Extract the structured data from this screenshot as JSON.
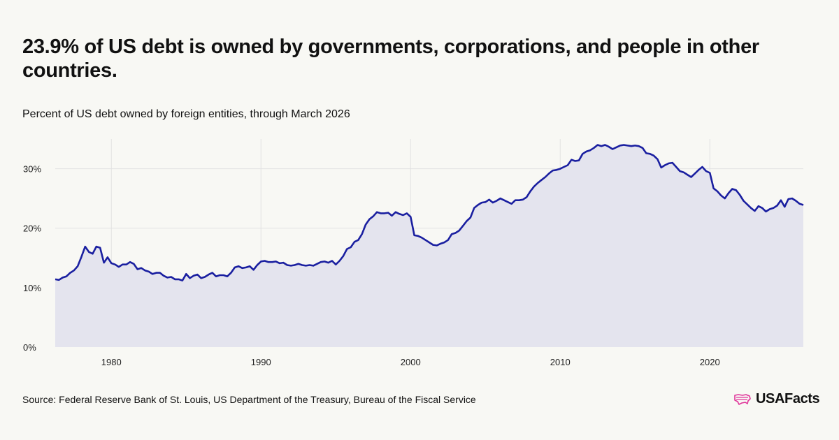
{
  "header": {
    "title": "23.9% of US debt is owned by governments, corporations, and people in other countries.",
    "subtitle": "Percent of US debt owned by foreign entities, through March 2026"
  },
  "footer": {
    "source": "Source: Federal Reserve Bank of St. Louis, US Department of the Treasury, Bureau of the Fiscal Service",
    "logo_text": "USAFacts",
    "logo_icon": "us-map-icon"
  },
  "colors": {
    "line": "#1a1fa0",
    "area": "#e4e4ee",
    "grid": "#e2e2e2",
    "logo": "#e0359a"
  },
  "chart_data": {
    "type": "area",
    "title": "23.9% of US debt is owned by governments, corporations, and people in other countries.",
    "subtitle": "Percent of US debt owned by foreign entities, through March 2026",
    "xlim": [
      1976.25,
      2026.25
    ],
    "ylim": [
      0,
      35
    ],
    "x_ticks": [
      1980,
      1990,
      2000,
      2010,
      2020
    ],
    "y_ticks": [
      0,
      10,
      20,
      30
    ],
    "y_tick_format": "percent",
    "grid": true,
    "series": [
      {
        "x": [
          1976.25,
          1976.5,
          1976.75,
          1977,
          1977.25,
          1977.5,
          1977.75,
          1978,
          1978.25,
          1978.5,
          1978.75,
          1979,
          1979.25,
          1979.5,
          1979.75,
          1980,
          1980.25,
          1980.5,
          1980.75,
          1981,
          1981.25,
          1981.5,
          1981.75,
          1982,
          1982.25,
          1982.5,
          1982.75,
          1983,
          1983.25,
          1983.5,
          1983.75,
          1984,
          1984.25,
          1984.5,
          1984.75,
          1985,
          1985.25,
          1985.5,
          1985.75,
          1986,
          1986.25,
          1986.5,
          1986.75,
          1987,
          1987.25,
          1987.5,
          1987.75,
          1988,
          1988.25,
          1988.5,
          1988.75,
          1989,
          1989.25,
          1989.5,
          1989.75,
          1990,
          1990.25,
          1990.5,
          1990.75,
          1991,
          1991.25,
          1991.5,
          1991.75,
          1992,
          1992.25,
          1992.5,
          1992.75,
          1993,
          1993.25,
          1993.5,
          1993.75,
          1994,
          1994.25,
          1994.5,
          1994.75,
          1995,
          1995.25,
          1995.5,
          1995.75,
          1996,
          1996.25,
          1996.5,
          1996.75,
          1997,
          1997.25,
          1997.5,
          1997.75,
          1998,
          1998.25,
          1998.5,
          1998.75,
          1999,
          1999.25,
          1999.5,
          1999.75,
          2000,
          2000.25,
          2000.5,
          2000.75,
          2001,
          2001.25,
          2001.5,
          2001.75,
          2002,
          2002.25,
          2002.5,
          2002.75,
          2003,
          2003.25,
          2003.5,
          2003.75,
          2004,
          2004.25,
          2004.5,
          2004.75,
          2005,
          2005.25,
          2005.5,
          2005.75,
          2006,
          2006.25,
          2006.5,
          2006.75,
          2007,
          2007.25,
          2007.5,
          2007.75,
          2008,
          2008.25,
          2008.5,
          2008.75,
          2009,
          2009.25,
          2009.5,
          2009.75,
          2010,
          2010.25,
          2010.5,
          2010.75,
          2011,
          2011.25,
          2011.5,
          2011.75,
          2012,
          2012.25,
          2012.5,
          2012.75,
          2013,
          2013.25,
          2013.5,
          2013.75,
          2014,
          2014.25,
          2014.5,
          2014.75,
          2015,
          2015.25,
          2015.5,
          2015.75,
          2016,
          2016.25,
          2016.5,
          2016.75,
          2017,
          2017.25,
          2017.5,
          2017.75,
          2018,
          2018.25,
          2018.5,
          2018.75,
          2019,
          2019.25,
          2019.5,
          2019.75,
          2020,
          2020.25,
          2020.5,
          2020.75,
          2021,
          2021.25,
          2021.5,
          2021.75,
          2022,
          2022.25,
          2022.5,
          2022.75,
          2023,
          2023.25,
          2023.5,
          2023.75,
          2024,
          2024.25,
          2024.5,
          2024.75,
          2025,
          2025.25,
          2025.5,
          2025.75,
          2026,
          2026.25
        ],
        "values": [
          11.4,
          11.3,
          11.7,
          11.9,
          12.5,
          12.9,
          13.6,
          15.2,
          16.9,
          16.0,
          15.7,
          16.9,
          16.7,
          14.2,
          15.1,
          14.1,
          13.9,
          13.5,
          13.9,
          13.9,
          14.3,
          14.0,
          13.1,
          13.3,
          12.9,
          12.7,
          12.3,
          12.5,
          12.5,
          12.0,
          11.7,
          11.8,
          11.4,
          11.4,
          11.2,
          12.3,
          11.6,
          12.0,
          12.2,
          11.6,
          11.8,
          12.2,
          12.5,
          11.9,
          12.1,
          12.1,
          11.9,
          12.5,
          13.4,
          13.6,
          13.3,
          13.4,
          13.6,
          13.0,
          13.8,
          14.4,
          14.5,
          14.3,
          14.3,
          14.4,
          14.1,
          14.2,
          13.8,
          13.7,
          13.8,
          14.0,
          13.8,
          13.7,
          13.8,
          13.7,
          14.0,
          14.3,
          14.4,
          14.2,
          14.5,
          13.9,
          14.5,
          15.3,
          16.5,
          16.8,
          17.7,
          18.0,
          19.0,
          20.6,
          21.5,
          22.0,
          22.7,
          22.5,
          22.5,
          22.6,
          22.1,
          22.7,
          22.4,
          22.2,
          22.5,
          21.9,
          18.8,
          18.7,
          18.4,
          18.0,
          17.6,
          17.2,
          17.1,
          17.4,
          17.6,
          18.0,
          19.0,
          19.2,
          19.6,
          20.4,
          21.2,
          21.8,
          23.4,
          23.9,
          24.3,
          24.4,
          24.8,
          24.3,
          24.6,
          25.0,
          24.7,
          24.4,
          24.1,
          24.7,
          24.7,
          24.8,
          25.2,
          26.2,
          27.0,
          27.6,
          28.1,
          28.6,
          29.2,
          29.7,
          29.8,
          30.0,
          30.3,
          30.6,
          31.5,
          31.3,
          31.4,
          32.5,
          32.9,
          33.1,
          33.5,
          34.0,
          33.8,
          34.0,
          33.7,
          33.3,
          33.6,
          33.9,
          34.0,
          33.9,
          33.8,
          33.9,
          33.8,
          33.5,
          32.6,
          32.5,
          32.2,
          31.6,
          30.2,
          30.6,
          30.9,
          31.0,
          30.3,
          29.6,
          29.4,
          29.0,
          28.6,
          29.2,
          29.8,
          30.3,
          29.6,
          29.3,
          26.7,
          26.2,
          25.5,
          25.0,
          25.9,
          26.6,
          26.4,
          25.6,
          24.6,
          24.0,
          23.4,
          22.9,
          23.7,
          23.4,
          22.8,
          23.2,
          23.4,
          23.8,
          24.7,
          23.6,
          24.9,
          25.0,
          24.6,
          24.1,
          23.9
        ]
      }
    ]
  }
}
